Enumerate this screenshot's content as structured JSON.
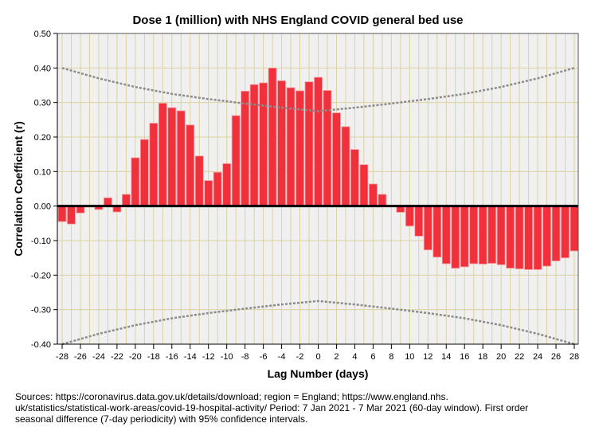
{
  "chart_data": {
    "type": "bar",
    "title": "Dose 1 (million) with NHS England COVID general bed use",
    "xlabel": "Lag Number (days)",
    "ylabel": "Correlation Coefficient (r)",
    "ylim": [
      -0.4,
      0.5
    ],
    "yticks": [
      "0.50",
      "0.40",
      "0.30",
      "0.20",
      "0.10",
      "0.00",
      "-0.10",
      "-0.20",
      "-0.30",
      "-0.40"
    ],
    "ytick_values": [
      0.5,
      0.4,
      0.3,
      0.2,
      0.1,
      0,
      -0.1,
      -0.2,
      -0.3,
      -0.4
    ],
    "x": [
      -28,
      -27,
      -26,
      -25,
      -24,
      -23,
      -22,
      -21,
      -20,
      -19,
      -18,
      -17,
      -16,
      -15,
      -14,
      -13,
      -12,
      -11,
      -10,
      -9,
      -8,
      -7,
      -6,
      -5,
      -4,
      -3,
      -2,
      -1,
      0,
      1,
      2,
      3,
      4,
      5,
      6,
      7,
      8,
      9,
      10,
      11,
      12,
      13,
      14,
      15,
      16,
      17,
      18,
      19,
      20,
      21,
      22,
      23,
      24,
      25,
      26,
      27,
      28
    ],
    "values": [
      -0.045,
      -0.052,
      -0.02,
      0.0,
      -0.01,
      0.024,
      -0.017,
      0.034,
      0.14,
      0.193,
      0.24,
      0.298,
      0.285,
      0.276,
      0.235,
      0.145,
      0.074,
      0.098,
      0.123,
      0.262,
      0.333,
      0.352,
      0.357,
      0.4,
      0.363,
      0.343,
      0.334,
      0.36,
      0.373,
      0.335,
      0.27,
      0.23,
      0.164,
      0.12,
      0.064,
      0.034,
      0.0,
      -0.018,
      -0.058,
      -0.087,
      -0.127,
      -0.148,
      -0.167,
      -0.18,
      -0.176,
      -0.167,
      -0.168,
      -0.166,
      -0.17,
      -0.18,
      -0.182,
      -0.184,
      -0.184,
      -0.174,
      -0.159,
      -0.15,
      -0.13
    ],
    "xticks": [
      "-28",
      "-26",
      "-24",
      "-22",
      "-20",
      "-18",
      "-16",
      "-14",
      "-12",
      "-10",
      "-8",
      "-6",
      "-4",
      "-2",
      "0",
      "2",
      "4",
      "6",
      "8",
      "10",
      "12",
      "14",
      "16",
      "18",
      "20",
      "22",
      "24",
      "26",
      "28"
    ],
    "xtick_values": [
      -28,
      -26,
      -24,
      -22,
      -20,
      -18,
      -16,
      -14,
      -12,
      -10,
      -8,
      -6,
      -4,
      -2,
      0,
      2,
      4,
      6,
      8,
      10,
      12,
      14,
      16,
      18,
      20,
      22,
      24,
      26,
      28
    ],
    "confidence_interval": {
      "lags": [
        -28,
        -24,
        -20,
        -16,
        -12,
        -8,
        -4,
        0,
        4,
        8,
        12,
        16,
        20,
        24,
        28
      ],
      "upper": [
        0.4,
        0.37,
        0.345,
        0.325,
        0.31,
        0.297,
        0.285,
        0.275,
        0.285,
        0.297,
        0.31,
        0.325,
        0.345,
        0.37,
        0.4
      ]
    },
    "grid": true,
    "colors": {
      "bar": "#f0313b",
      "bar_edge": "#f5a0a5",
      "grid": "#dcd3a0",
      "ci": "#8c8c8c",
      "plot_bg": "#f0f0f0"
    }
  },
  "footnote": {
    "line1": "Sources: https://coronavirus.data.gov.uk/details/download; region = England; https://www.england.nhs.",
    "line2": "uk/statistics/statistical-work-areas/covid-19-hospital-activity/ Period: 7 Jan 2021 - 7 Mar 2021 (60-day window). First order",
    "line3": "seasonal difference (7-day periodicity) with 95% confidence intervals."
  }
}
